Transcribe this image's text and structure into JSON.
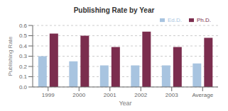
{
  "chart_data": {
    "type": "bar",
    "title": "Publishing Rate by Year",
    "xlabel": "Year",
    "ylabel": "Publishing Rate",
    "categories": [
      "1999",
      "2000",
      "2001",
      "2002",
      "2003",
      "Average"
    ],
    "series": [
      {
        "name": "Ed.D.",
        "color": "#a8c4e0",
        "values": [
          0.3,
          0.25,
          0.21,
          0.21,
          0.21,
          0.23
        ]
      },
      {
        "name": "Ph.D.",
        "color": "#7b2d4e",
        "values": [
          0.52,
          0.5,
          0.39,
          0.54,
          0.39,
          0.48
        ]
      }
    ],
    "ylim": [
      0,
      0.6
    ],
    "yticks": [
      {
        "value": 0.0,
        "label": "0.0"
      },
      0.1,
      0.2,
      0.3,
      0.4,
      0.5,
      0.6
    ],
    "grid": true,
    "legend": "upper right"
  }
}
